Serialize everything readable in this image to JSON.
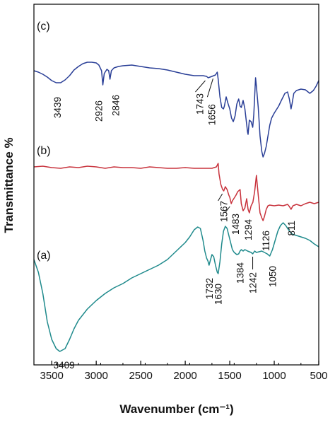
{
  "chart_data": {
    "type": "line",
    "xlabel": "Wavenumber (cm⁻¹)",
    "ylabel": "Transmittance %",
    "xlim": [
      3700,
      500
    ],
    "x_reversed": true,
    "x_ticks": [
      3500,
      3000,
      2500,
      2000,
      1500,
      1000,
      500
    ],
    "x_tick_labels": [
      "3500",
      "3000",
      "2500",
      "2000",
      "1500",
      "1000",
      "500"
    ],
    "y_units": "arbitrary, stacked spectra",
    "grid": false,
    "legend": "none",
    "series": [
      {
        "panel_label": "(c)",
        "color": "#2a3f97",
        "points": [
          [
            3700,
            58
          ],
          [
            3650,
            60
          ],
          [
            3600,
            63
          ],
          [
            3550,
            67
          ],
          [
            3500,
            72
          ],
          [
            3450,
            75
          ],
          [
            3400,
            75
          ],
          [
            3350,
            71
          ],
          [
            3300,
            65
          ],
          [
            3250,
            57
          ],
          [
            3200,
            52
          ],
          [
            3150,
            48
          ],
          [
            3100,
            46
          ],
          [
            3050,
            46
          ],
          [
            3000,
            47
          ],
          [
            2970,
            50
          ],
          [
            2940,
            58
          ],
          [
            2926,
            78
          ],
          [
            2910,
            62
          ],
          [
            2880,
            56
          ],
          [
            2860,
            58
          ],
          [
            2846,
            70
          ],
          [
            2830,
            58
          ],
          [
            2800,
            54
          ],
          [
            2750,
            52
          ],
          [
            2700,
            51
          ],
          [
            2600,
            50
          ],
          [
            2500,
            52
          ],
          [
            2400,
            54
          ],
          [
            2300,
            55
          ],
          [
            2200,
            57
          ],
          [
            2100,
            60
          ],
          [
            2000,
            63
          ],
          [
            1900,
            65
          ],
          [
            1800,
            65
          ],
          [
            1760,
            66
          ],
          [
            1743,
            68
          ],
          [
            1700,
            66
          ],
          [
            1660,
            64
          ],
          [
            1640,
            60
          ],
          [
            1630,
            70
          ],
          [
            1610,
            95
          ],
          [
            1590,
            110
          ],
          [
            1570,
            112
          ],
          [
            1560,
            108
          ],
          [
            1540,
            95
          ],
          [
            1520,
            104
          ],
          [
            1500,
            112
          ],
          [
            1480,
            125
          ],
          [
            1460,
            130
          ],
          [
            1440,
            122
          ],
          [
            1420,
            105
          ],
          [
            1400,
            98
          ],
          [
            1384,
            108
          ],
          [
            1370,
            110
          ],
          [
            1350,
            100
          ],
          [
            1330,
            112
          ],
          [
            1300,
            145
          ],
          [
            1294,
            148
          ],
          [
            1280,
            128
          ],
          [
            1260,
            130
          ],
          [
            1242,
            138
          ],
          [
            1230,
            120
          ],
          [
            1210,
            68
          ],
          [
            1200,
            80
          ],
          [
            1180,
            110
          ],
          [
            1160,
            150
          ],
          [
            1140,
            172
          ],
          [
            1126,
            180
          ],
          [
            1110,
            175
          ],
          [
            1090,
            165
          ],
          [
            1070,
            150
          ],
          [
            1050,
            135
          ],
          [
            1030,
            125
          ],
          [
            1000,
            118
          ],
          [
            970,
            112
          ],
          [
            950,
            108
          ],
          [
            920,
            100
          ],
          [
            880,
            90
          ],
          [
            850,
            88
          ],
          [
            830,
            98
          ],
          [
            811,
            112
          ],
          [
            800,
            105
          ],
          [
            780,
            90
          ],
          [
            750,
            86
          ],
          [
            700,
            84
          ],
          [
            650,
            85
          ],
          [
            600,
            90
          ],
          [
            560,
            86
          ],
          [
            530,
            80
          ],
          [
            500,
            72
          ]
        ]
      },
      {
        "panel_label": "(b)",
        "color": "#c8323c",
        "points": [
          [
            3700,
            40
          ],
          [
            3600,
            39
          ],
          [
            3500,
            41
          ],
          [
            3400,
            42
          ],
          [
            3300,
            40
          ],
          [
            3200,
            41
          ],
          [
            3100,
            39
          ],
          [
            3000,
            40
          ],
          [
            2900,
            42
          ],
          [
            2800,
            40
          ],
          [
            2700,
            41
          ],
          [
            2600,
            41
          ],
          [
            2500,
            42
          ],
          [
            2400,
            40
          ],
          [
            2300,
            41
          ],
          [
            2200,
            42
          ],
          [
            2100,
            42
          ],
          [
            2000,
            41
          ],
          [
            1900,
            42
          ],
          [
            1800,
            42
          ],
          [
            1700,
            42
          ],
          [
            1650,
            40
          ],
          [
            1630,
            35
          ],
          [
            1620,
            50
          ],
          [
            1600,
            65
          ],
          [
            1580,
            72
          ],
          [
            1567,
            74
          ],
          [
            1550,
            68
          ],
          [
            1530,
            72
          ],
          [
            1510,
            80
          ],
          [
            1500,
            83
          ],
          [
            1483,
            92
          ],
          [
            1470,
            88
          ],
          [
            1450,
            84
          ],
          [
            1430,
            80
          ],
          [
            1410,
            75
          ],
          [
            1384,
            72
          ],
          [
            1370,
            92
          ],
          [
            1350,
            102
          ],
          [
            1330,
            98
          ],
          [
            1310,
            85
          ],
          [
            1294,
            100
          ],
          [
            1280,
            105
          ],
          [
            1260,
            95
          ],
          [
            1240,
            90
          ],
          [
            1220,
            75
          ],
          [
            1200,
            52
          ],
          [
            1180,
            80
          ],
          [
            1160,
            105
          ],
          [
            1140,
            112
          ],
          [
            1126,
            116
          ],
          [
            1110,
            110
          ],
          [
            1090,
            100
          ],
          [
            1070,
            95
          ],
          [
            1050,
            94
          ],
          [
            1000,
            95
          ],
          [
            950,
            94
          ],
          [
            900,
            95
          ],
          [
            850,
            93
          ],
          [
            830,
            96
          ],
          [
            811,
            100
          ],
          [
            790,
            95
          ],
          [
            750,
            93
          ],
          [
            700,
            95
          ],
          [
            650,
            92
          ],
          [
            600,
            90
          ],
          [
            550,
            92
          ],
          [
            500,
            90
          ]
        ]
      },
      {
        "panel_label": "(a)",
        "color": "#1f8a8c",
        "points": [
          [
            3700,
            52
          ],
          [
            3650,
            70
          ],
          [
            3600,
            100
          ],
          [
            3550,
            140
          ],
          [
            3500,
            165
          ],
          [
            3450,
            178
          ],
          [
            3409,
            182
          ],
          [
            3350,
            178
          ],
          [
            3300,
            165
          ],
          [
            3250,
            150
          ],
          [
            3200,
            138
          ],
          [
            3100,
            122
          ],
          [
            3000,
            110
          ],
          [
            2900,
            100
          ],
          [
            2800,
            92
          ],
          [
            2700,
            86
          ],
          [
            2600,
            78
          ],
          [
            2500,
            72
          ],
          [
            2400,
            66
          ],
          [
            2300,
            60
          ],
          [
            2200,
            52
          ],
          [
            2100,
            40
          ],
          [
            2000,
            28
          ],
          [
            1950,
            20
          ],
          [
            1900,
            10
          ],
          [
            1860,
            6
          ],
          [
            1830,
            8
          ],
          [
            1800,
            25
          ],
          [
            1780,
            40
          ],
          [
            1760,
            50
          ],
          [
            1745,
            54
          ],
          [
            1732,
            60
          ],
          [
            1720,
            54
          ],
          [
            1700,
            45
          ],
          [
            1680,
            48
          ],
          [
            1660,
            60
          ],
          [
            1640,
            70
          ],
          [
            1630,
            72
          ],
          [
            1610,
            55
          ],
          [
            1590,
            30
          ],
          [
            1570,
            12
          ],
          [
            1550,
            5
          ],
          [
            1530,
            8
          ],
          [
            1510,
            18
          ],
          [
            1490,
            28
          ],
          [
            1470,
            38
          ],
          [
            1450,
            42
          ],
          [
            1420,
            45
          ],
          [
            1400,
            44
          ],
          [
            1384,
            40
          ],
          [
            1370,
            38
          ],
          [
            1350,
            40
          ],
          [
            1330,
            38
          ],
          [
            1300,
            40
          ],
          [
            1260,
            42
          ],
          [
            1242,
            44
          ],
          [
            1220,
            40
          ],
          [
            1200,
            42
          ],
          [
            1170,
            41
          ],
          [
            1140,
            40
          ],
          [
            1110,
            42
          ],
          [
            1080,
            44
          ],
          [
            1050,
            47
          ],
          [
            1020,
            38
          ],
          [
            990,
            25
          ],
          [
            960,
            12
          ],
          [
            930,
            4
          ],
          [
            900,
            0
          ],
          [
            870,
            4
          ],
          [
            840,
            10
          ],
          [
            800,
            16
          ],
          [
            750,
            18
          ],
          [
            700,
            20
          ],
          [
            650,
            22
          ],
          [
            600,
            25
          ],
          [
            550,
            30
          ],
          [
            500,
            34
          ]
        ]
      }
    ],
    "annotations": [
      {
        "series": "(c)",
        "label": "3439",
        "x": 3439
      },
      {
        "series": "(c)",
        "label": "2926",
        "x": 2926
      },
      {
        "series": "(c)",
        "label": "2846",
        "x": 2846
      },
      {
        "series": "(c)",
        "label": "1743",
        "x": 1743
      },
      {
        "series": "(c)",
        "label": "1656",
        "x": 1656
      },
      {
        "series": "(b)",
        "label": "1567",
        "x": 1567
      },
      {
        "series": "(b)",
        "label": "1483",
        "x": 1483
      },
      {
        "series": "(b)",
        "label": "1294",
        "x": 1294
      },
      {
        "series": "(b)",
        "label": "1126",
        "x": 1126
      },
      {
        "series": "(b)",
        "label": "811",
        "x": 811
      },
      {
        "series": "(a)",
        "label": "3409",
        "x": 3409
      },
      {
        "series": "(a)",
        "label": "1732",
        "x": 1732
      },
      {
        "series": "(a)",
        "label": "1630",
        "x": 1630
      },
      {
        "series": "(a)",
        "label": "1384",
        "x": 1384
      },
      {
        "series": "(a)",
        "label": "1242",
        "x": 1242
      },
      {
        "series": "(a)",
        "label": "1050",
        "x": 1050
      }
    ]
  }
}
